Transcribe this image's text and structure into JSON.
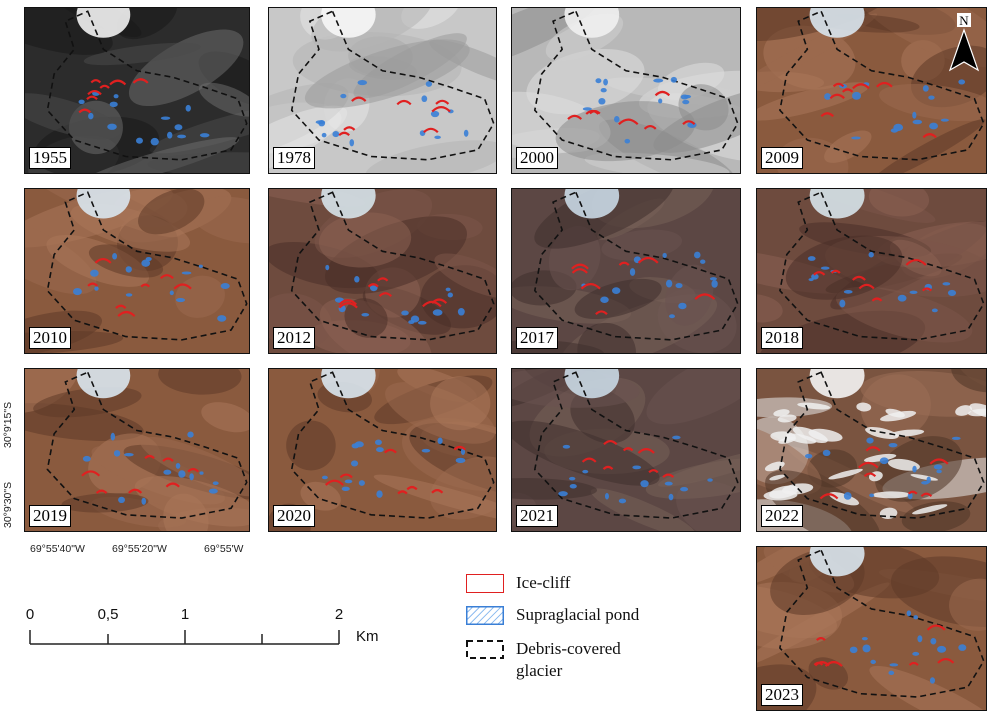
{
  "panels": [
    {
      "year": "1955",
      "style": "bw-dark"
    },
    {
      "year": "1978",
      "style": "bw-light"
    },
    {
      "year": "2000",
      "style": "gray-light"
    },
    {
      "year": "2009",
      "style": "color-tan"
    },
    {
      "year": "2010",
      "style": "color-tan"
    },
    {
      "year": "2012",
      "style": "color-brown"
    },
    {
      "year": "2017",
      "style": "color-dusk"
    },
    {
      "year": "2018",
      "style": "color-brown"
    },
    {
      "year": "2019",
      "style": "color-tan"
    },
    {
      "year": "2020",
      "style": "color-tan"
    },
    {
      "year": "2021",
      "style": "color-dusk"
    },
    {
      "year": "2022",
      "style": "color-snow"
    },
    {
      "year": "2023",
      "style": "color-tan"
    }
  ],
  "north_arrow": {
    "label": "N"
  },
  "coordinates": {
    "lat": [
      "30°9'15\"S",
      "30°9'30\"S"
    ],
    "lon": [
      "69°55'40\"W",
      "69°55'20\"W",
      "69°55'W"
    ]
  },
  "scale_bar": {
    "labels": [
      "0",
      "0,5",
      "1",
      "2"
    ],
    "unit": "Km"
  },
  "legend": {
    "ice_cliff": "Ice-cliff",
    "pond": "Supraglacial pond",
    "debris": "Debris-covered glacier"
  },
  "colors": {
    "ice_cliff": "#e02020",
    "pond": "#3a7fd6",
    "outline": "#111111"
  }
}
